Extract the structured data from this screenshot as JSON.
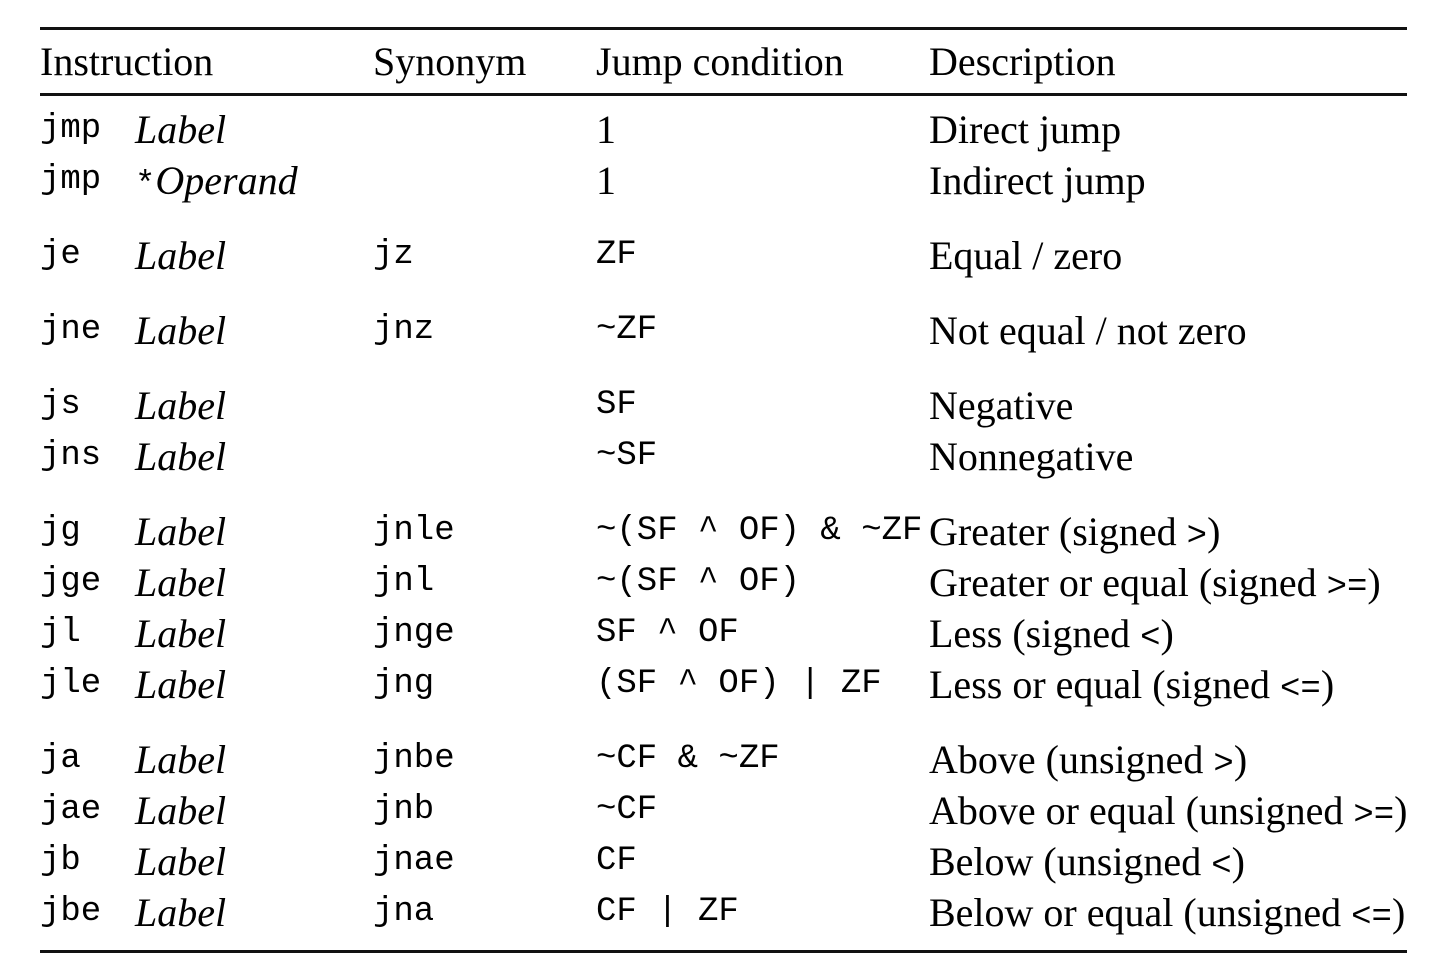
{
  "table": {
    "title": "jump-instructions-table",
    "headers": [
      {
        "label": "Instruction"
      },
      {
        "label": "Synonym"
      },
      {
        "label": "Jump condition"
      },
      {
        "label": "Description"
      }
    ],
    "colors": {
      "text": "#000000",
      "background": "#ffffff",
      "rule": "#111111"
    },
    "groups": [
      {
        "rows": [
          {
            "mnemonic": "jmp",
            "operand_prefix": "",
            "operand": "Label",
            "synonym": "",
            "condition": "1",
            "description": "Direct jump"
          },
          {
            "mnemonic": "jmp",
            "operand_prefix": "*",
            "operand": "Operand",
            "synonym": "",
            "condition": "1",
            "description": "Indirect jump"
          }
        ]
      },
      {
        "rows": [
          {
            "mnemonic": "je",
            "operand_prefix": "",
            "operand": "Label",
            "synonym": "jz",
            "condition": "ZF",
            "description": "Equal / zero"
          }
        ]
      },
      {
        "rows": [
          {
            "mnemonic": "jne",
            "operand_prefix": "",
            "operand": "Label",
            "synonym": "jnz",
            "condition": "~ZF",
            "description": "Not equal / not zero"
          }
        ]
      },
      {
        "rows": [
          {
            "mnemonic": "js",
            "operand_prefix": "",
            "operand": "Label",
            "synonym": "",
            "condition": "SF",
            "description": "Negative"
          },
          {
            "mnemonic": "jns",
            "operand_prefix": "",
            "operand": "Label",
            "synonym": "",
            "condition": "~SF",
            "description": "Nonnegative"
          }
        ]
      },
      {
        "rows": [
          {
            "mnemonic": "jg",
            "operand_prefix": "",
            "operand": "Label",
            "synonym": "jnle",
            "condition": "~(SF ^ OF) & ~ZF",
            "description": "Greater (signed >)"
          },
          {
            "mnemonic": "jge",
            "operand_prefix": "",
            "operand": "Label",
            "synonym": "jnl",
            "condition": "~(SF ^ OF)",
            "description": "Greater or equal (signed >=)"
          },
          {
            "mnemonic": "jl",
            "operand_prefix": "",
            "operand": "Label",
            "synonym": "jnge",
            "condition": "SF ^ OF",
            "description": "Less (signed <)"
          },
          {
            "mnemonic": "jle",
            "operand_prefix": "",
            "operand": "Label",
            "synonym": "jng",
            "condition": "(SF ^ OF) | ZF",
            "description": "Less or equal (signed <=)"
          }
        ]
      },
      {
        "rows": [
          {
            "mnemonic": "ja",
            "operand_prefix": "",
            "operand": "Label",
            "synonym": "jnbe",
            "condition": "~CF & ~ZF",
            "description": "Above (unsigned >)"
          },
          {
            "mnemonic": "jae",
            "operand_prefix": "",
            "operand": "Label",
            "synonym": "jnb",
            "condition": "~CF",
            "description": "Above or equal (unsigned >=)"
          },
          {
            "mnemonic": "jb",
            "operand_prefix": "",
            "operand": "Label",
            "synonym": "jnae",
            "condition": "CF",
            "description": "Below (unsigned <)"
          },
          {
            "mnemonic": "jbe",
            "operand_prefix": "",
            "operand": "Label",
            "synonym": "jna",
            "condition": "CF | ZF",
            "description": "Below or equal (unsigned <=)"
          }
        ]
      }
    ]
  }
}
